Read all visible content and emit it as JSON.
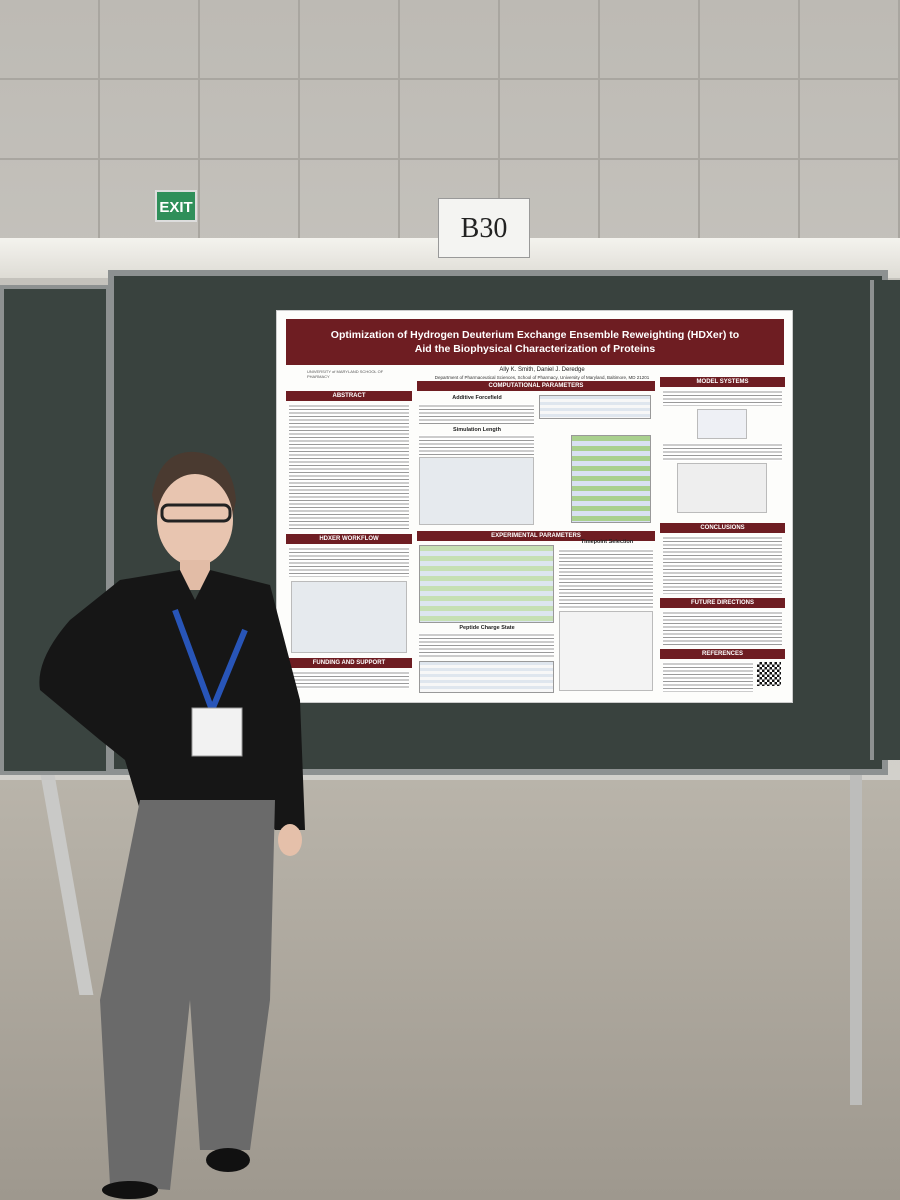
{
  "sign": {
    "exit": "EXIT",
    "booth": "B30"
  },
  "poster": {
    "title": "Optimization of Hydrogen Deuterium Exchange Ensemble Reweighting (HDXer) to Aid the Biophysical Characterization of Proteins",
    "authors": "Ally K. Smith, Daniel J. Deredge",
    "affiliation": "Department of Pharmaceutical Sciences, School of Pharmacy, University of Maryland, Baltimore, MD 21201",
    "logo": "UNIVERSITY of MARYLAND SCHOOL OF PHARMACY",
    "sections": {
      "abstract": "ABSTRACT",
      "workflow": "HDXER WORKFLOW",
      "funding": "FUNDING AND SUPPORT",
      "computational": "COMPUTATIONAL PARAMETERS",
      "forcefield": "Additive Forcefield",
      "simlength": "Simulation Length",
      "experimental": "EXPERIMENTAL PARAMETERS",
      "timepoint": "Timepoint Selection",
      "charge": "Peptide Charge State",
      "model": "MODEL SYSTEMS",
      "conclusions": "CONCLUSIONS",
      "future": "FUTURE DIRECTIONS",
      "references": "REFERENCES"
    }
  }
}
